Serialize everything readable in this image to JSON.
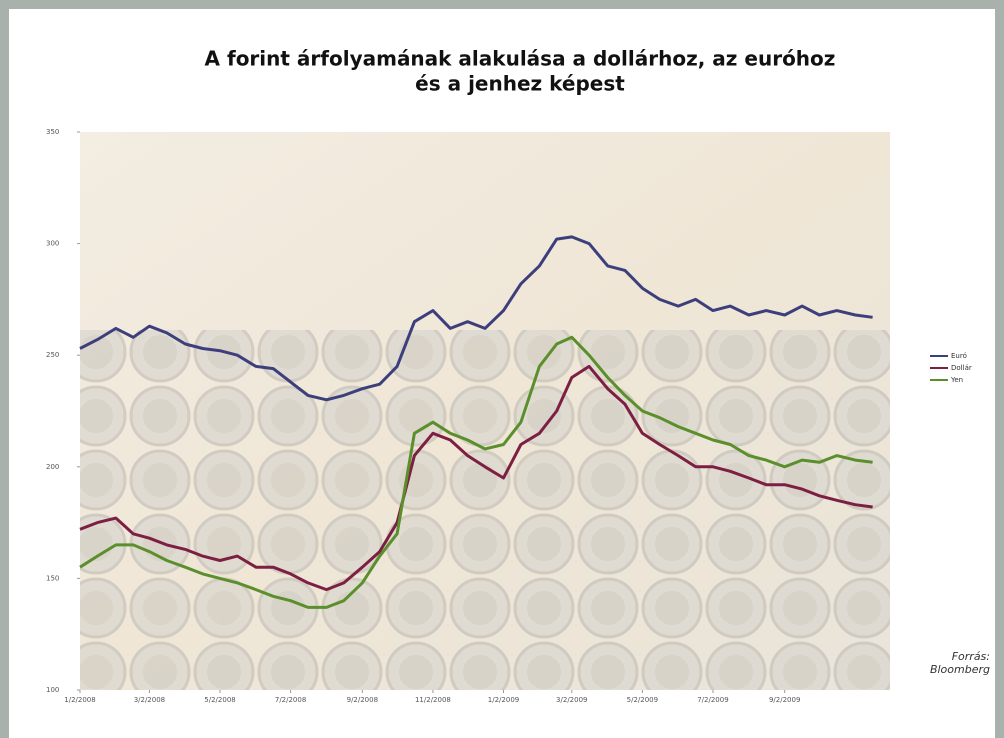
{
  "chart_data": {
    "type": "line",
    "title": "A forint árfolyamának alakulása a dollárhoz, az euróhoz",
    "subtitle": "és a jenhez képest",
    "source": "Forrás: Bloomberg",
    "x": [
      "1/2/2008",
      "1/17/2008",
      "2/2/2008",
      "2/17/2008",
      "3/2/2008",
      "3/17/2008",
      "4/2/2008",
      "4/17/2008",
      "5/2/2008",
      "5/17/2008",
      "6/2/2008",
      "6/17/2008",
      "7/2/2008",
      "7/17/2008",
      "8/2/2008",
      "8/17/2008",
      "9/2/2008",
      "9/17/2008",
      "10/2/2008",
      "10/17/2008",
      "11/2/2008",
      "11/17/2008",
      "12/2/2008",
      "12/17/2008",
      "1/2/2009",
      "1/17/2009",
      "2/2/2009",
      "2/17/2009",
      "3/2/2009",
      "3/17/2009",
      "4/2/2009",
      "4/17/2009",
      "5/2/2009",
      "5/17/2009",
      "6/2/2009",
      "6/17/2009",
      "7/2/2009",
      "7/17/2009",
      "8/2/2009",
      "8/17/2009",
      "9/2/2009",
      "9/17/2009",
      "10/2/2009",
      "10/17/2009",
      "11/2/2009",
      "11/17/2009"
    ],
    "series": [
      {
        "name": "Euró",
        "color": "#3d3f7c",
        "values": [
          253,
          257,
          262,
          258,
          263,
          260,
          255,
          253,
          252,
          250,
          245,
          244,
          238,
          232,
          230,
          232,
          235,
          237,
          245,
          265,
          270,
          262,
          265,
          262,
          270,
          282,
          290,
          302,
          303,
          300,
          290,
          288,
          280,
          275,
          272,
          275,
          270,
          272,
          268,
          270,
          268,
          272,
          268,
          270,
          268,
          267
        ]
      },
      {
        "name": "Dollár",
        "color": "#7d1f42",
        "values": [
          172,
          175,
          177,
          170,
          168,
          165,
          163,
          160,
          158,
          160,
          155,
          155,
          152,
          148,
          145,
          148,
          155,
          162,
          175,
          205,
          215,
          212,
          205,
          200,
          195,
          210,
          215,
          225,
          240,
          245,
          235,
          228,
          215,
          210,
          205,
          200,
          200,
          198,
          195,
          192,
          192,
          190,
          187,
          185,
          183,
          182
        ]
      },
      {
        "name": "Yen",
        "color": "#5b8f2b",
        "values": [
          155,
          160,
          165,
          165,
          162,
          158,
          155,
          152,
          150,
          148,
          145,
          142,
          140,
          137,
          137,
          140,
          148,
          160,
          170,
          215,
          220,
          215,
          212,
          208,
          210,
          220,
          245,
          255,
          258,
          250,
          240,
          232,
          225,
          222,
          218,
          215,
          212,
          210,
          205,
          203,
          200,
          203,
          202,
          205,
          203,
          202
        ]
      }
    ],
    "xlim": [
      "1/2/2008",
      "12/2/2009"
    ],
    "xticks": [
      "1/2/2008",
      "3/2/2008",
      "5/2/2008",
      "7/2/2008",
      "9/2/2008",
      "11/2/2008",
      "1/2/2009",
      "3/2/2009",
      "5/2/2009",
      "7/2/2009",
      "9/2/2009"
    ],
    "ylim": [
      100,
      350
    ],
    "yticks": [
      100,
      150,
      200,
      250,
      300,
      350
    ],
    "legend": "right"
  }
}
